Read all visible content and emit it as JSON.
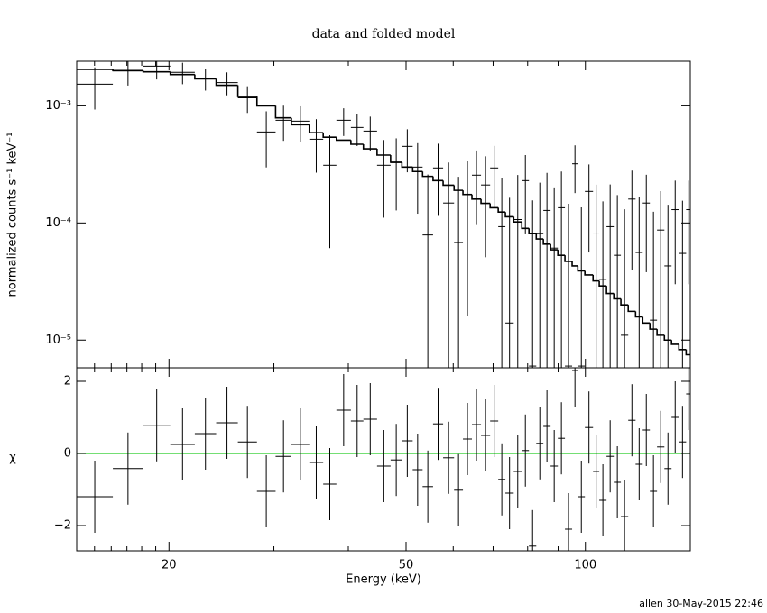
{
  "chart_data": [
    {
      "type": "spectrum",
      "title": "data and folded model",
      "ylabel": "normalized counts s⁻¹ keV⁻¹",
      "xscale": "log",
      "yscale": "log",
      "xlim": [
        14,
        150
      ],
      "ylim": [
        5.8e-06,
        0.0024
      ],
      "xticks": [
        20,
        50,
        100
      ],
      "xminor_ticks": [
        15,
        16,
        17,
        18,
        19,
        30,
        40,
        60,
        70,
        80,
        90
      ],
      "xtick_labels": false,
      "yticks": [
        {
          "value": 0.001,
          "label": "10⁻³"
        },
        {
          "value": 0.0001,
          "label": "10⁻⁴"
        },
        {
          "value": 1e-05,
          "label": "10⁻⁵"
        }
      ],
      "color": "#000000",
      "bin_edges": [
        14.0,
        16.1,
        18.1,
        20.1,
        22.1,
        24.0,
        26.1,
        28.1,
        30.2,
        32.1,
        34.4,
        36.3,
        38.2,
        40.4,
        42.4,
        44.7,
        47.1,
        49.2,
        51.3,
        53.3,
        55.5,
        57.7,
        60.2,
        62.3,
        64.5,
        66.8,
        69.2,
        71.4,
        73.4,
        75.8,
        78.2,
        80.4,
        82.7,
        85.0,
        87.4,
        89.9,
        92.4,
        95.0,
        97.1,
        99.8,
        103.0,
        105.5,
        108.5,
        111.6,
        114.7,
        118.0,
        121.4,
        124.8,
        128.3,
        131.9,
        135.7,
        139.5,
        143.5,
        147.6,
        150
      ],
      "values": [
        0.00153,
        0.00199,
        0.00218,
        0.00193,
        0.0017,
        0.00158,
        0.00117,
        0.000598,
        0.000753,
        0.00074,
        0.000519,
        0.000311,
        0.000753,
        0.000654,
        0.000609,
        0.000311,
        0.000328,
        0.000451,
        0.0003,
        7.9e-05,
        0.000295,
        0.000148,
        6.8e-05,
        0.000176,
        0.000256,
        0.000211,
        0.000295,
        9.3e-05,
        1.4e-05,
        0.000107,
        0.00023,
        6e-06,
        8.1e-05,
        0.000128,
        6.1e-05,
        0.000135,
        6e-06,
        0.00032,
        6e-06,
        0.000186,
        8.2e-05,
        3.3e-05,
        9.3e-05,
        5.3e-05,
        1.1e-05,
        0.00016,
        5.6e-05,
        0.000148,
        1.48e-05,
        8.7e-05,
        4.3e-05,
        0.00013,
        5.5e-05,
        0.00013
      ],
      "errors": [
        0.0006,
        0.0005,
        0.0005,
        0.0004,
        0.00035,
        0.00035,
        0.0003,
        0.0003,
        0.00025,
        0.00025,
        0.00025,
        0.00025,
        0.0002,
        0.0002,
        0.0002,
        0.0002,
        0.0002,
        0.00018,
        0.00018,
        0.00018,
        0.00018,
        0.00018,
        0.00018,
        0.00016,
        0.00016,
        0.00016,
        0.00016,
        0.00015,
        0.00015,
        0.00015,
        0.00015,
        0.00015,
        0.00014,
        0.00014,
        0.00014,
        0.00014,
        0.00014,
        0.00014,
        0.00013,
        0.00013,
        0.00013,
        0.00012,
        0.00012,
        0.00012,
        0.00012,
        0.00012,
        0.00011,
        0.00011,
        0.00011,
        0.0001,
        0.0001,
        0.0001,
        0.0001,
        0.0001
      ],
      "model": [
        0.00205,
        0.002,
        0.00195,
        0.00185,
        0.0017,
        0.0015,
        0.0012,
        0.001,
        0.00079,
        0.00069,
        0.00059,
        0.00054,
        0.00051,
        0.00047,
        0.00043,
        0.00038,
        0.00033,
        0.0003,
        0.000275,
        0.00025,
        0.00023,
        0.00021,
        0.00019,
        0.000175,
        0.00016,
        0.000147,
        0.000135,
        0.000124,
        0.000113,
        0.000102,
        9e-05,
        8.1e-05,
        7.3e-05,
        6.6e-05,
        5.9e-05,
        5.3e-05,
        4.7e-05,
        4.3e-05,
        3.9e-05,
        3.6e-05,
        3.2e-05,
        2.9e-05,
        2.5e-05,
        2.25e-05,
        2e-05,
        1.76e-05,
        1.58e-05,
        1.4e-05,
        1.24e-05,
        1.1e-05,
        1e-05,
        9.2e-06,
        8.3e-06,
        7.5e-06
      ]
    },
    {
      "type": "residual",
      "ylabel": "χ",
      "xlabel": "Energy (keV)",
      "xscale": "log",
      "xlim": [
        14,
        150
      ],
      "ylim": [
        -2.7,
        2.375
      ],
      "xticks": [
        20,
        50,
        100
      ],
      "xminor_ticks": [
        15,
        16,
        17,
        18,
        19,
        30,
        40,
        60,
        70,
        80,
        90
      ],
      "xtick_labels": true,
      "yticks": [
        {
          "value": -2,
          "label": "−2"
        },
        0,
        2
      ],
      "color": "#000000",
      "zero_line_color": "#22cc22",
      "bin_edges": [
        14.0,
        16.1,
        18.1,
        20.1,
        22.1,
        24.0,
        26.1,
        28.1,
        30.2,
        32.1,
        34.4,
        36.3,
        38.2,
        40.4,
        42.4,
        44.7,
        47.1,
        49.2,
        51.3,
        53.3,
        55.5,
        57.7,
        60.2,
        62.3,
        64.5,
        66.8,
        69.2,
        71.4,
        73.4,
        75.8,
        78.2,
        80.4,
        82.7,
        85.0,
        87.4,
        89.9,
        92.4,
        95.0,
        97.1,
        99.8,
        103.0,
        105.5,
        108.5,
        111.6,
        114.7,
        118.0,
        121.4,
        124.8,
        128.3,
        131.9,
        135.7,
        139.5,
        143.5,
        147.6,
        150
      ],
      "values": [
        -1.2,
        -0.42,
        0.78,
        0.25,
        0.55,
        0.85,
        0.32,
        -1.05,
        -0.08,
        0.25,
        -0.25,
        -0.85,
        1.2,
        0.9,
        0.95,
        -0.35,
        -0.18,
        0.35,
        -0.45,
        -0.92,
        0.82,
        -0.12,
        -1.02,
        0.4,
        0.8,
        0.5,
        0.9,
        -0.72,
        -1.1,
        -0.5,
        0.08,
        -2.57,
        0.28,
        0.75,
        -0.35,
        0.42,
        -2.1,
        2.3,
        -1.2,
        0.72,
        -0.5,
        -1.3,
        -0.08,
        -0.8,
        -1.75,
        0.92,
        -0.3,
        0.65,
        -1.05,
        0.18,
        -0.42,
        1.0,
        0.32,
        1.65
      ]
    }
  ],
  "footer": "allen 30-May-2015 22:46"
}
